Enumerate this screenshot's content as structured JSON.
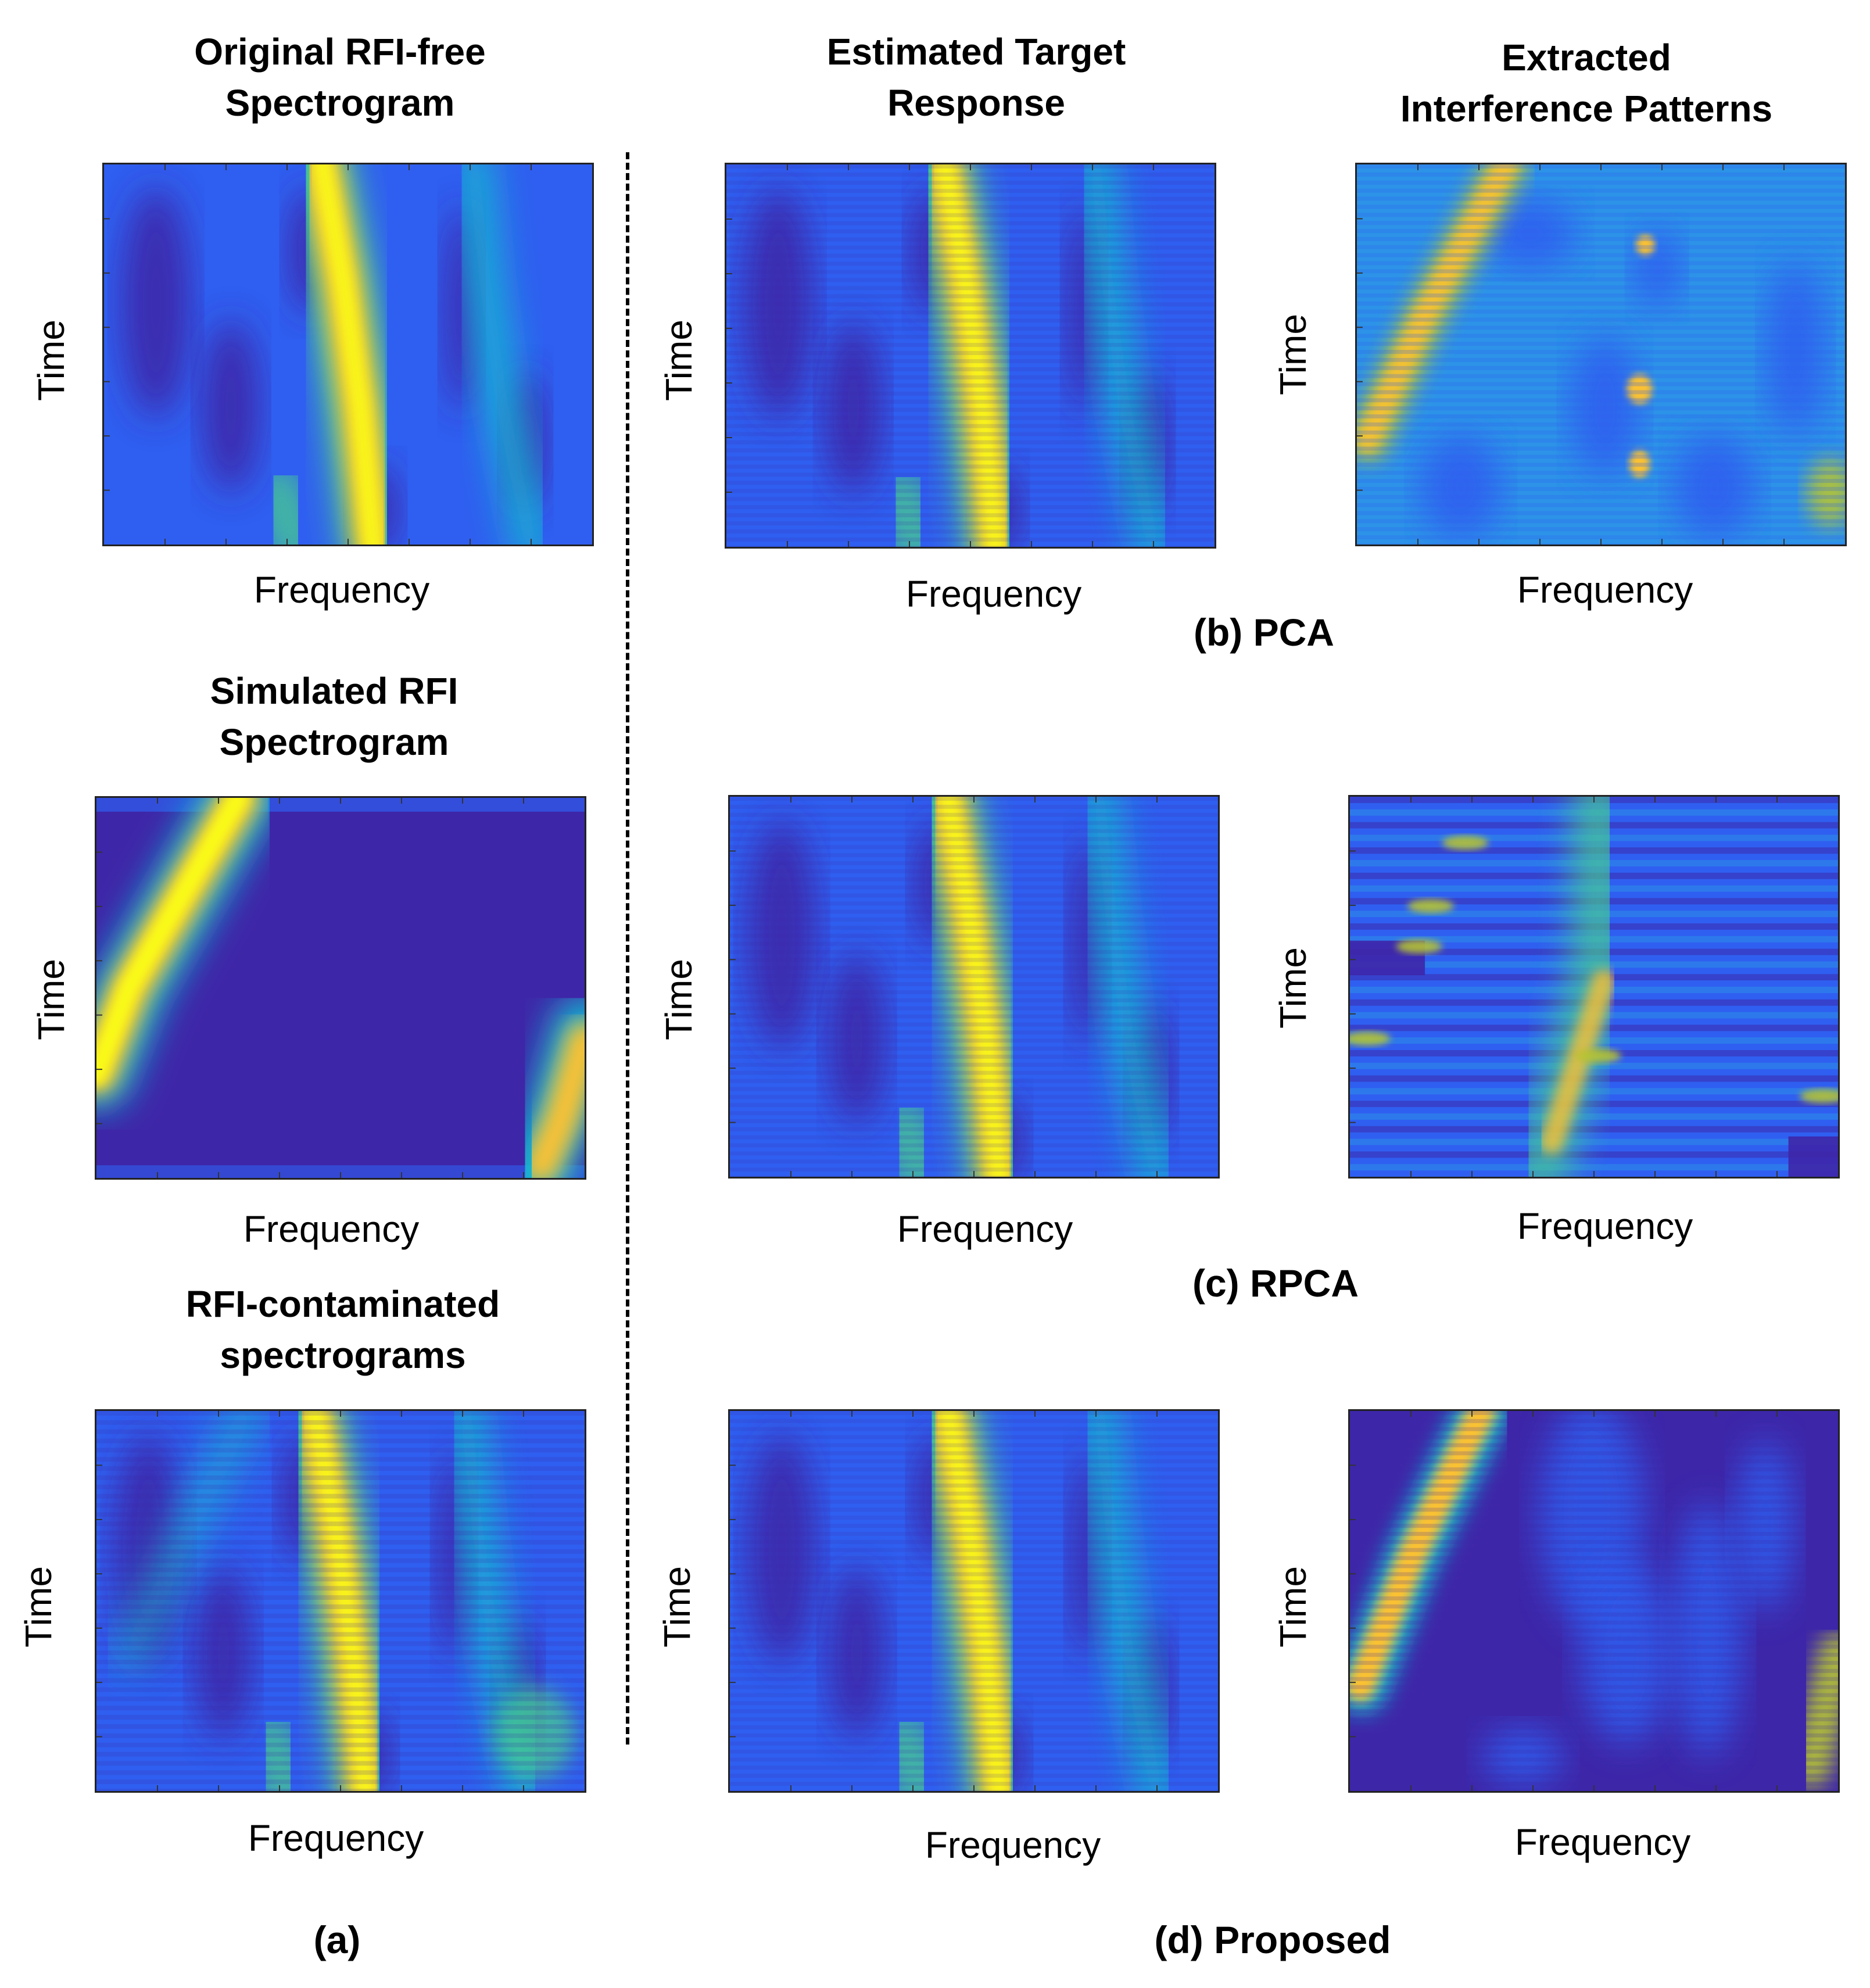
{
  "titles": {
    "original_line1": "Original RFI-free",
    "original_line2": "Spectrogram",
    "estimated_line1": "Estimated Target",
    "estimated_line2": "Response",
    "extracted_line1": "Extracted",
    "extracted_line2": "Interference Patterns",
    "simulated_line1": "Simulated RFI",
    "simulated_line2": "Spectrogram",
    "contaminated_line1": "RFI-contaminated",
    "contaminated_line2": "spectrograms"
  },
  "axis": {
    "x": "Frequency",
    "y": "Time"
  },
  "captions": {
    "a": "(a)",
    "b": "(b) PCA",
    "c": "(c) RPCA",
    "d": "(d) Proposed"
  },
  "colormap": [
    "#3e26a8",
    "#2f5ff0",
    "#2c93e8",
    "#14bdcf",
    "#49d38a",
    "#b6c532",
    "#fbc130",
    "#f9fb15"
  ]
}
